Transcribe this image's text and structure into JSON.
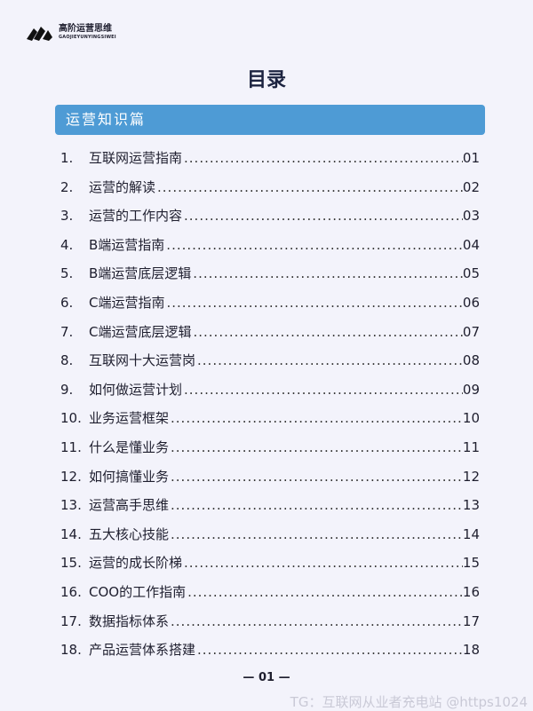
{
  "logo": {
    "name_cn": "高阶运营思维",
    "name_en": "GAOJIEYUNYINGSIWEI"
  },
  "title": "目录",
  "section": "运营知识篇",
  "items": [
    {
      "num": "1.",
      "label": "互联网运营指南",
      "page": "01"
    },
    {
      "num": "2.",
      "label": "运营的解读",
      "page": "02"
    },
    {
      "num": "3.",
      "label": "运营的工作内容",
      "page": "03"
    },
    {
      "num": "4.",
      "label": "B端运营指南",
      "page": "04"
    },
    {
      "num": "5.",
      "label": "B端运营底层逻辑",
      "page": "05"
    },
    {
      "num": "6.",
      "label": "C端运营指南",
      "page": "06"
    },
    {
      "num": "7.",
      "label": "C端运营底层逻辑",
      "page": "07"
    },
    {
      "num": "8.",
      "label": "互联网十大运营岗",
      "page": "08"
    },
    {
      "num": "9.",
      "label": "如何做运营计划",
      "page": "09"
    },
    {
      "num": "10.",
      "label": "业务运营框架",
      "page": "10"
    },
    {
      "num": "11.",
      "label": "什么是懂业务",
      "page": "11"
    },
    {
      "num": "12.",
      "label": "如何搞懂业务",
      "page": "12"
    },
    {
      "num": "13.",
      "label": "运营高手思维",
      "page": "13"
    },
    {
      "num": "14.",
      "label": "五大核心技能",
      "page": "14"
    },
    {
      "num": "15.",
      "label": "运营的成长阶梯",
      "page": "15"
    },
    {
      "num": "16.",
      "label": "COO的工作指南",
      "page": "16"
    },
    {
      "num": "17.",
      "label": "数据指标体系",
      "page": "17"
    },
    {
      "num": "18.",
      "label": "产品运营体系搭建",
      "page": "18"
    }
  ],
  "footer": "— 01 —",
  "watermark": "TG：互联网从业者充电站 @https1024"
}
